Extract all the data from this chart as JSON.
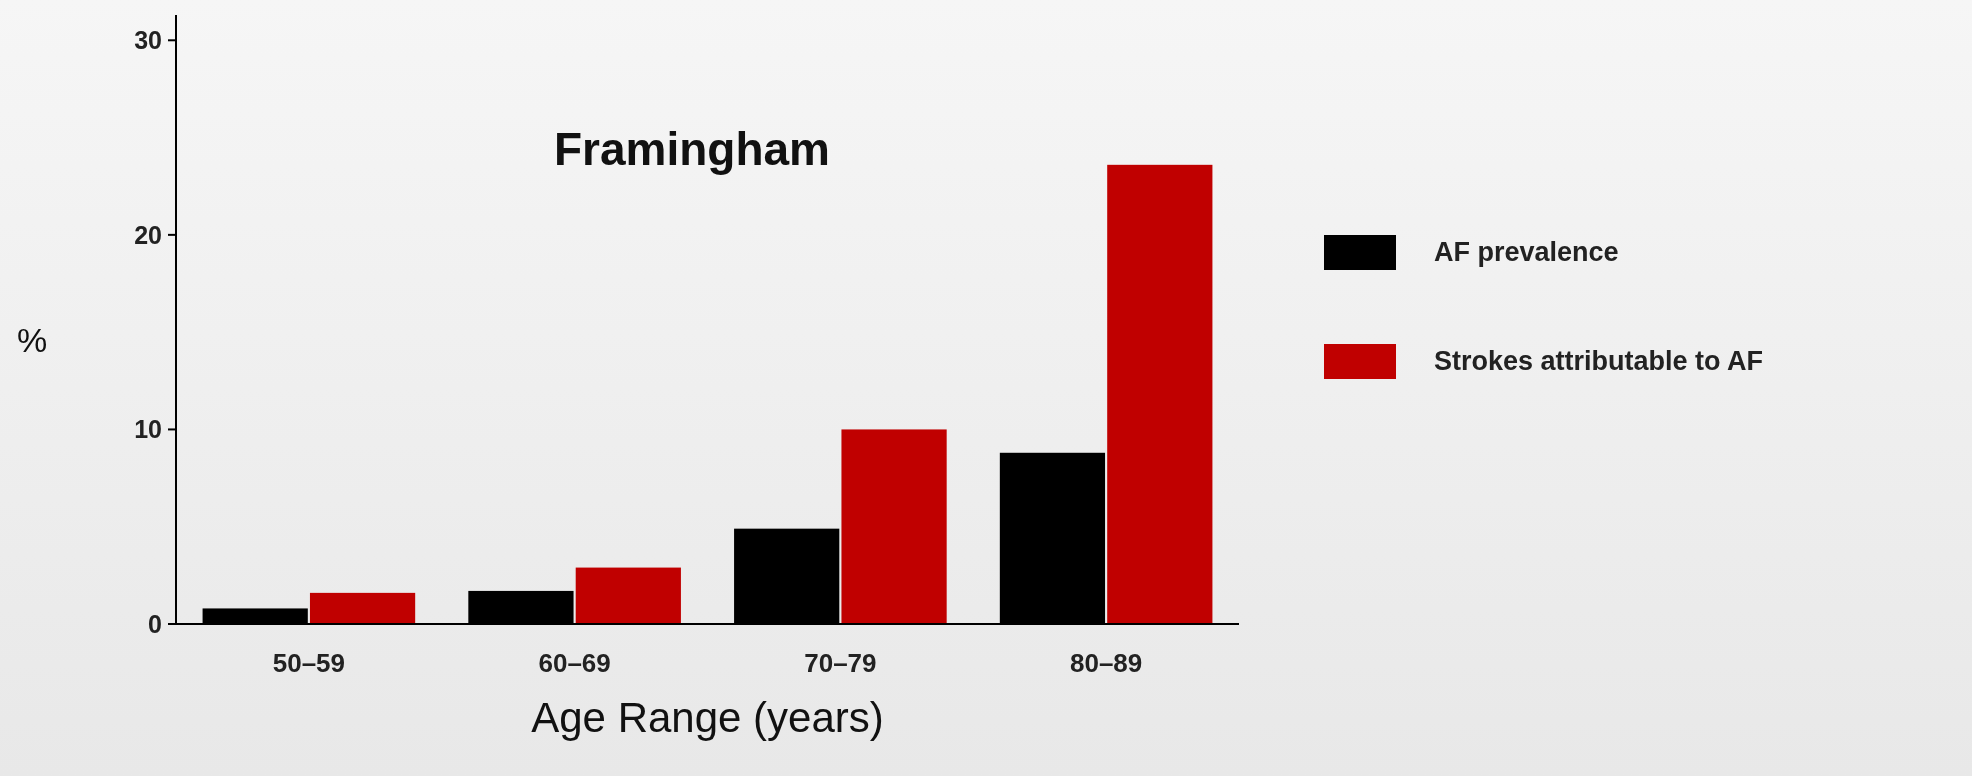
{
  "chart_data": {
    "type": "bar",
    "title": "Framingham",
    "xlabel": "Age Range (years)",
    "ylabel": "%",
    "categories": [
      "50–59",
      "60–69",
      "70–79",
      "80–89"
    ],
    "series": [
      {
        "name": "AF prevalence",
        "color": "#000000",
        "values": [
          0.8,
          1.7,
          4.9,
          8.8
        ]
      },
      {
        "name": "Strokes attributable to AF",
        "color": "#c00000",
        "values": [
          1.6,
          2.9,
          10.0,
          23.6
        ]
      }
    ],
    "ylim": [
      0,
      31.3
    ],
    "yticks": [
      0,
      10,
      20,
      30
    ],
    "grid": false,
    "legend": "right"
  }
}
